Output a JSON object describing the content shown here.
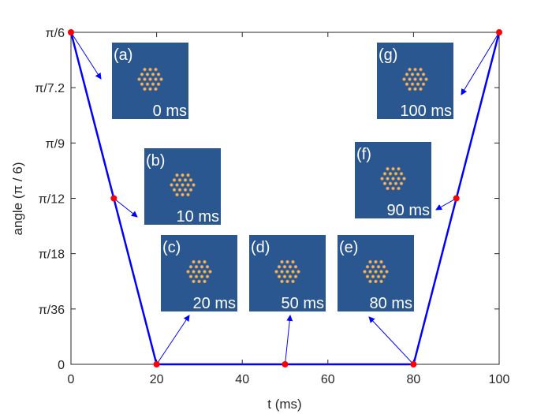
{
  "chart_data": {
    "type": "line",
    "xlabel": "t (ms)",
    "ylabel": "angle (π / 6)",
    "xlim": [
      0,
      100
    ],
    "ylim": [
      0,
      0.523599
    ],
    "x_ticks": [
      {
        "value": 0,
        "label": "0"
      },
      {
        "value": 20,
        "label": "20"
      },
      {
        "value": 40,
        "label": "40"
      },
      {
        "value": 60,
        "label": "60"
      },
      {
        "value": 80,
        "label": "80"
      },
      {
        "value": 100,
        "label": "100"
      }
    ],
    "y_ticks": [
      {
        "value": 0,
        "label": "0"
      },
      {
        "value": 0.087266,
        "label": "π/36"
      },
      {
        "value": 0.174533,
        "label": "π/18"
      },
      {
        "value": 0.261799,
        "label": "π/12"
      },
      {
        "value": 0.349066,
        "label": "π/9"
      },
      {
        "value": 0.436332,
        "label": "π/7.2"
      },
      {
        "value": 0.523599,
        "label": "π/6"
      }
    ],
    "series": [
      {
        "color": "#0000ff",
        "x": [
          0,
          20,
          80,
          100
        ],
        "y": [
          0.523599,
          0,
          0,
          0.523599
        ]
      }
    ],
    "markers": [
      {
        "x": 0,
        "y": 0.523599
      },
      {
        "x": 10,
        "y": 0.261799
      },
      {
        "x": 20,
        "y": 0
      },
      {
        "x": 50,
        "y": 0
      },
      {
        "x": 80,
        "y": 0
      },
      {
        "x": 90,
        "y": 0.261799
      },
      {
        "x": 100,
        "y": 0.523599
      }
    ],
    "marker_color": "#ff0000",
    "insets": [
      {
        "id": "a",
        "letter": "(a)",
        "time": "0 ms"
      },
      {
        "id": "b",
        "letter": "(b)",
        "time": "10 ms"
      },
      {
        "id": "c",
        "letter": "(c)",
        "time": "20 ms"
      },
      {
        "id": "d",
        "letter": "(d)",
        "time": "50 ms"
      },
      {
        "id": "e",
        "letter": "(e)",
        "time": "80 ms"
      },
      {
        "id": "f",
        "letter": "(f)",
        "time": "90 ms"
      },
      {
        "id": "g",
        "letter": "(g)",
        "time": "100 ms"
      }
    ],
    "inset_background": "#2a5790",
    "spot_color": "#e8a050",
    "grid": false
  }
}
